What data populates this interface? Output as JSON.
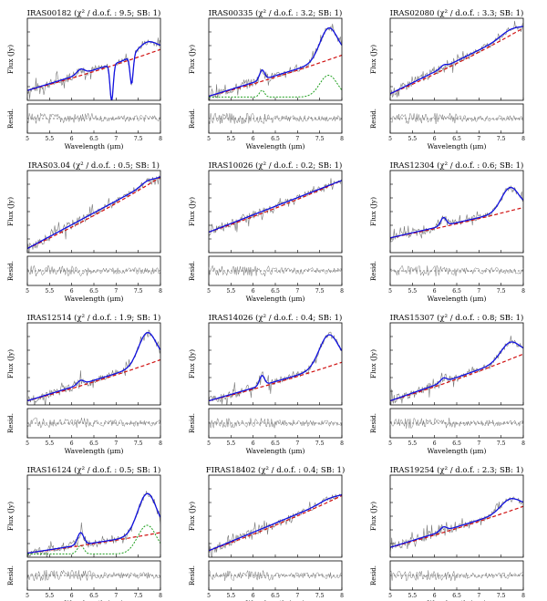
{
  "figure": {
    "xlabel": "Wavelength (μm)",
    "residual_label": "Resid.",
    "ylabel": "Flux (Jy)"
  },
  "chart_data": [
    {
      "type": "line",
      "title": "IRAS00182 (χ² / d.o.f. : 9.5; SB: 1)",
      "xlim": [
        5,
        8
      ],
      "ylim": [
        0,
        1
      ],
      "xticks": [
        5,
        5.5,
        6,
        6.5,
        7,
        7.5,
        8
      ],
      "yticks": [],
      "series": [
        {
          "name": "data",
          "values": []
        },
        {
          "name": "model",
          "values": []
        },
        {
          "name": "continuum",
          "values": []
        }
      ]
    },
    {
      "type": "line",
      "title": "IRAS00335 (χ² / d.o.f. : 3.2; SB: 1)",
      "xlim": [
        5,
        8
      ],
      "ylim": [
        0,
        1
      ],
      "xticks": [
        5,
        5.5,
        6,
        6.5,
        7,
        7.5,
        8
      ],
      "yticks": [],
      "series": [
        {
          "name": "data",
          "values": []
        },
        {
          "name": "model",
          "values": []
        },
        {
          "name": "continuum",
          "values": []
        },
        {
          "name": "starburst",
          "values": []
        }
      ]
    },
    {
      "type": "line",
      "title": "IRAS02080 (χ² / d.o.f. : 3.3; SB: 1)",
      "xlim": [
        5,
        8
      ],
      "ylim": [
        0,
        1
      ],
      "xticks": [
        5,
        5.5,
        6,
        6.5,
        7,
        7.5,
        8
      ],
      "yticks": [],
      "series": [
        {
          "name": "data",
          "values": []
        },
        {
          "name": "model",
          "values": []
        },
        {
          "name": "continuum",
          "values": []
        }
      ]
    },
    {
      "type": "line",
      "title": "IRAS03.04 (χ² / d.o.f. : 0.5; SB: 1)",
      "xlim": [
        5,
        8
      ],
      "ylim": [
        0,
        1
      ],
      "xticks": [
        5,
        5.5,
        6,
        6.5,
        7,
        7.5,
        8
      ],
      "yticks": [],
      "series": [
        {
          "name": "data",
          "values": []
        },
        {
          "name": "model",
          "values": []
        },
        {
          "name": "continuum",
          "values": []
        }
      ]
    },
    {
      "type": "line",
      "title": "IRAS10026 (χ² / d.o.f. : 0.2; SB: 1)",
      "xlim": [
        5,
        8
      ],
      "ylim": [
        0,
        1
      ],
      "xticks": [
        5,
        5.5,
        6,
        6.5,
        7,
        7.5,
        8
      ],
      "yticks": [],
      "series": [
        {
          "name": "data",
          "values": []
        },
        {
          "name": "model",
          "values": []
        },
        {
          "name": "continuum",
          "values": []
        }
      ]
    },
    {
      "type": "line",
      "title": "IRAS12304 (χ² / d.o.f. : 0.6; SB: 1)",
      "xlim": [
        5,
        8
      ],
      "ylim": [
        0,
        1
      ],
      "xticks": [
        5,
        5.5,
        6,
        6.5,
        7,
        7.5,
        8
      ],
      "yticks": [],
      "series": [
        {
          "name": "data",
          "values": []
        },
        {
          "name": "model",
          "values": []
        },
        {
          "name": "continuum",
          "values": []
        }
      ]
    },
    {
      "type": "line",
      "title": "IRAS12514 (χ² / d.o.f. : 1.9; SB: 1)",
      "xlim": [
        5,
        8
      ],
      "ylim": [
        0,
        1
      ],
      "xticks": [
        5,
        5.5,
        6,
        6.5,
        7,
        7.5,
        8
      ],
      "yticks": [],
      "series": [
        {
          "name": "data",
          "values": []
        },
        {
          "name": "model",
          "values": []
        },
        {
          "name": "continuum",
          "values": []
        }
      ]
    },
    {
      "type": "line",
      "title": "IRAS14026 (χ² / d.o.f. : 0.4; SB: 1)",
      "xlim": [
        5,
        8
      ],
      "ylim": [
        0,
        1
      ],
      "xticks": [
        5,
        5.5,
        6,
        6.5,
        7,
        7.5,
        8
      ],
      "yticks": [],
      "series": [
        {
          "name": "data",
          "values": []
        },
        {
          "name": "model",
          "values": []
        },
        {
          "name": "continuum",
          "values": []
        }
      ]
    },
    {
      "type": "line",
      "title": "IRAS15307 (χ² / d.o.f. : 0.8; SB: 1)",
      "xlim": [
        5,
        8
      ],
      "ylim": [
        0,
        1
      ],
      "xticks": [
        5,
        5.5,
        6,
        6.5,
        7,
        7.5,
        8
      ],
      "yticks": [],
      "series": [
        {
          "name": "data",
          "values": []
        },
        {
          "name": "model",
          "values": []
        },
        {
          "name": "continuum",
          "values": []
        }
      ]
    },
    {
      "type": "line",
      "title": "IRAS16124 (χ² / d.o.f. : 0.5; SB: 1)",
      "xlim": [
        5,
        8
      ],
      "ylim": [
        0,
        1
      ],
      "xticks": [
        5,
        5.5,
        6,
        6.5,
        7,
        7.5,
        8
      ],
      "yticks": [],
      "series": [
        {
          "name": "data",
          "values": []
        },
        {
          "name": "model",
          "values": []
        },
        {
          "name": "continuum",
          "values": []
        },
        {
          "name": "starburst",
          "values": []
        }
      ]
    },
    {
      "type": "line",
      "title": "FIRAS18402 (χ² / d.o.f. : 0.4; SB: 1)",
      "xlim": [
        5,
        8
      ],
      "ylim": [
        0,
        1
      ],
      "xticks": [
        5,
        5.5,
        6,
        6.5,
        7,
        7.5,
        8
      ],
      "yticks": [],
      "series": [
        {
          "name": "data",
          "values": []
        },
        {
          "name": "model",
          "values": []
        },
        {
          "name": "continuum",
          "values": []
        }
      ]
    },
    {
      "type": "line",
      "title": "IRAS19254 (χ² / d.o.f. : 2.3; SB: 1)",
      "xlim": [
        5,
        8
      ],
      "ylim": [
        0,
        1
      ],
      "xticks": [
        5,
        5.5,
        6,
        6.5,
        7,
        7.5,
        8
      ],
      "yticks": [],
      "series": [
        {
          "name": "data",
          "values": []
        },
        {
          "name": "model",
          "values": []
        },
        {
          "name": "continuum",
          "values": []
        }
      ]
    }
  ],
  "curve_profiles": [
    {
      "cont": [
        0.12,
        0.62
      ],
      "bumps": [
        [
          6.2,
          0.06,
          0.12
        ],
        [
          7.7,
          0.14,
          0.3
        ]
      ],
      "dips": [
        [
          6.9,
          0.45,
          0.05
        ],
        [
          7.35,
          0.35,
          0.05
        ]
      ]
    },
    {
      "cont": [
        0.05,
        0.55
      ],
      "bumps": [
        [
          6.2,
          0.12,
          0.08
        ],
        [
          7.7,
          0.38,
          0.28
        ]
      ],
      "sb": true
    },
    {
      "cont": [
        0.08,
        0.88
      ],
      "bumps": [
        [
          6.2,
          0.03,
          0.1
        ],
        [
          7.7,
          0.06,
          0.3
        ]
      ]
    },
    {
      "cont": [
        0.05,
        0.92
      ],
      "bumps": [
        [
          7.7,
          0.04,
          0.2
        ]
      ]
    },
    {
      "cont": [
        0.25,
        0.88
      ],
      "bumps": []
    },
    {
      "cont": [
        0.18,
        0.55
      ],
      "bumps": [
        [
          6.2,
          0.1,
          0.09
        ],
        [
          7.7,
          0.28,
          0.28
        ]
      ]
    },
    {
      "cont": [
        0.05,
        0.55
      ],
      "bumps": [
        [
          6.2,
          0.05,
          0.1
        ],
        [
          7.7,
          0.38,
          0.28
        ]
      ]
    },
    {
      "cont": [
        0.05,
        0.52
      ],
      "bumps": [
        [
          6.2,
          0.12,
          0.08
        ],
        [
          7.7,
          0.38,
          0.3
        ]
      ]
    },
    {
      "cont": [
        0.05,
        0.62
      ],
      "bumps": [
        [
          6.2,
          0.05,
          0.1
        ],
        [
          7.7,
          0.2,
          0.3
        ]
      ]
    },
    {
      "cont": [
        0.05,
        0.3
      ],
      "bumps": [
        [
          6.2,
          0.15,
          0.1
        ],
        [
          7.7,
          0.5,
          0.3
        ]
      ],
      "sb": true
    },
    {
      "cont": [
        0.08,
        0.75
      ],
      "bumps": [
        [
          7.7,
          0.03,
          0.3
        ]
      ]
    },
    {
      "cont": [
        0.12,
        0.62
      ],
      "bumps": [
        [
          6.2,
          0.05,
          0.1
        ],
        [
          7.7,
          0.14,
          0.3
        ]
      ]
    }
  ],
  "colors": {
    "model": "#1010e0",
    "continuum": "#d01010",
    "starburst": "#20a020",
    "data": "#777777",
    "axis": "#000000"
  }
}
